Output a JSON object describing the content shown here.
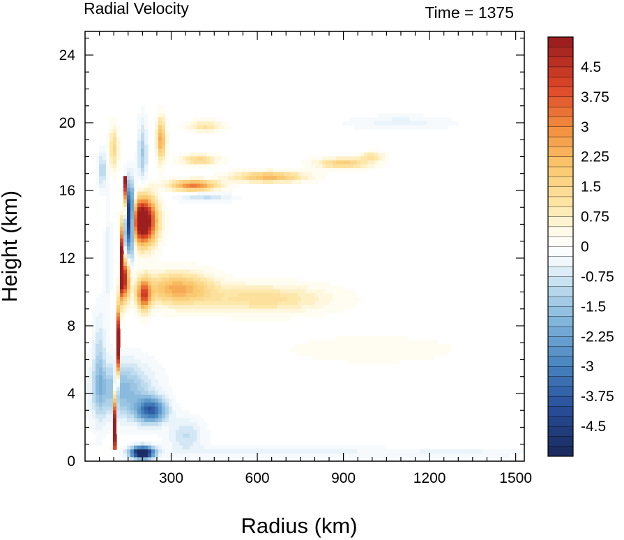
{
  "chart_data": {
    "type": "heatmap",
    "title": "Radial Velocity",
    "subtitle": "Time = 1375",
    "xlabel": "Radius (km)",
    "ylabel": "Height (km)",
    "xlim": [
      0,
      1530
    ],
    "ylim": [
      0,
      25.4
    ],
    "xticks": [
      300,
      600,
      900,
      1200,
      1500
    ],
    "xtick_labels": [
      "300",
      "600",
      "900",
      "1200",
      "1500"
    ],
    "yticks": [
      0,
      4,
      8,
      12,
      16,
      20,
      24
    ],
    "ytick_labels": [
      "0",
      "4",
      "8",
      "12",
      "16",
      "20",
      "24"
    ],
    "colorbar": {
      "min": -5.25,
      "max": 5.25,
      "step": 0.25,
      "tick_values": [
        4.5,
        3.75,
        3,
        2.25,
        1.5,
        0.75,
        0,
        -0.75,
        -1.5,
        -2.25,
        -3,
        -3.75,
        -4.5
      ],
      "tick_labels": [
        "4.5",
        "3.75",
        "3",
        "2.25",
        "1.5",
        "0.75",
        "0",
        "-0.75",
        "-1.5",
        "-2.25",
        "-3",
        "-3.75",
        "-4.5"
      ]
    },
    "features": [
      {
        "r": 200,
        "z": 14.2,
        "sr": 45,
        "sz": 1.3,
        "v": 7
      },
      {
        "r": 155,
        "z": 14.3,
        "sr": 18,
        "sz": 1.8,
        "v": -7
      },
      {
        "r": 140,
        "z": 10.8,
        "sr": 14,
        "sz": 1.2,
        "v": 4.5
      },
      {
        "r": 205,
        "z": 9.8,
        "sr": 22,
        "sz": 0.9,
        "v": 3.6
      },
      {
        "r": 320,
        "z": 10.2,
        "sr": 120,
        "sz": 0.9,
        "v": 2.4
      },
      {
        "r": 620,
        "z": 9.6,
        "sr": 220,
        "sz": 0.8,
        "v": 1.3
      },
      {
        "r": 380,
        "z": 16.3,
        "sr": 80,
        "sz": 0.3,
        "v": 3.2
      },
      {
        "r": 640,
        "z": 16.8,
        "sr": 120,
        "sz": 0.3,
        "v": 2.3
      },
      {
        "r": 900,
        "z": 17.6,
        "sr": 90,
        "sz": 0.3,
        "v": 1.8
      },
      {
        "r": 1000,
        "z": 18.0,
        "sr": 40,
        "sz": 0.25,
        "v": 1.2
      },
      {
        "r": 420,
        "z": 15.6,
        "sr": 90,
        "sz": 0.25,
        "v": -0.9
      },
      {
        "r": 1100,
        "z": 20.0,
        "sr": 170,
        "sz": 0.4,
        "v": -0.5
      },
      {
        "r": 1000,
        "z": 6.6,
        "sr": 300,
        "sz": 0.8,
        "v": 0.3
      },
      {
        "r": 400,
        "z": 17.8,
        "sr": 60,
        "sz": 0.3,
        "v": 1.6
      },
      {
        "r": 420,
        "z": 19.8,
        "sr": 60,
        "sz": 0.3,
        "v": 1.2
      },
      {
        "r": 265,
        "z": 19.0,
        "sr": 15,
        "sz": 1.2,
        "v": 2.6
      },
      {
        "r": 200,
        "z": 18.2,
        "sr": 15,
        "sz": 1.8,
        "v": -1.4
      },
      {
        "r": 100,
        "z": 18.5,
        "sr": 15,
        "sz": 1.2,
        "v": 1.5
      },
      {
        "r": 60,
        "z": 17.2,
        "sr": 15,
        "sz": 1.0,
        "v": -1.2
      },
      {
        "r": 230,
        "z": 3.0,
        "sr": 50,
        "sz": 0.7,
        "v": -3.6
      },
      {
        "r": 130,
        "z": 4.2,
        "sr": 100,
        "sz": 1.6,
        "v": -1.8
      },
      {
        "r": 350,
        "z": 1.5,
        "sr": 60,
        "sz": 1.0,
        "v": -0.9
      },
      {
        "r": 200,
        "z": 0.5,
        "sr": 40,
        "sz": 0.35,
        "v": -6.5
      },
      {
        "r": 700,
        "z": 0.6,
        "sr": 350,
        "sz": 0.25,
        "v": -0.6
      },
      {
        "r": 1300,
        "z": 0.5,
        "sr": 200,
        "sz": 0.2,
        "v": -0.5
      },
      {
        "r": 50,
        "z": 5.5,
        "sr": 20,
        "sz": 3.0,
        "v": -1.2
      },
      {
        "r": 80,
        "z": 11.8,
        "sr": 12,
        "sz": 3.0,
        "v": -0.6
      }
    ],
    "updraft_band": {
      "r_bottom": 100,
      "r_top": 140,
      "z_bottom": 0.8,
      "z_top": 16.8,
      "v": 6
    },
    "grid": false
  }
}
